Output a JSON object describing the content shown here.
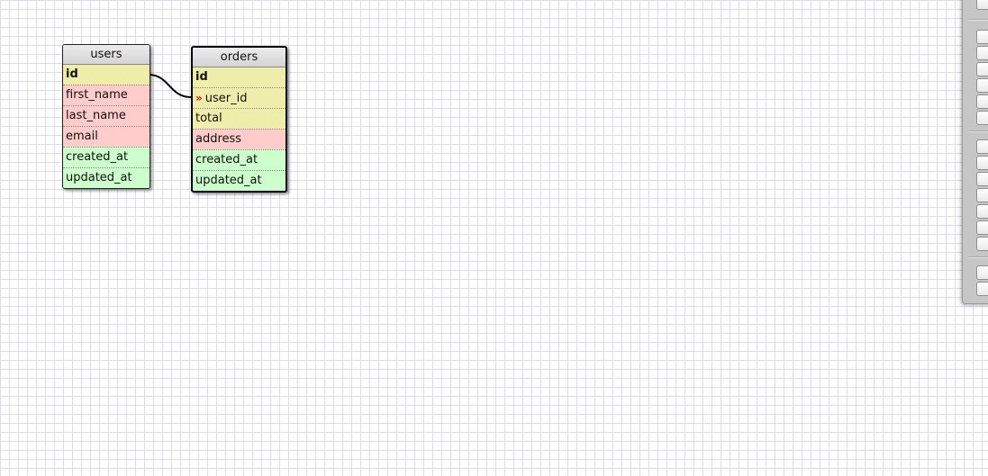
{
  "tables": {
    "users": {
      "title": "users",
      "fields": [
        {
          "name": "id",
          "type": "key"
        },
        {
          "name": "first_name",
          "type": "string"
        },
        {
          "name": "last_name",
          "type": "string"
        },
        {
          "name": "email",
          "type": "string"
        },
        {
          "name": "created_at",
          "type": "datetime"
        },
        {
          "name": "updated_at",
          "type": "datetime"
        }
      ]
    },
    "orders": {
      "title": "orders",
      "fields": [
        {
          "name": "id",
          "type": "key"
        },
        {
          "name": "user_id",
          "type": "key"
        },
        {
          "name": "total",
          "type": "key"
        },
        {
          "name": "address",
          "type": "string"
        },
        {
          "name": "created_at",
          "type": "datetime"
        },
        {
          "name": "updated_at",
          "type": "datetime"
        }
      ]
    }
  },
  "relations": [
    {
      "from": "users.id",
      "to": "orders.user_id"
    }
  ],
  "colors": {
    "key": "#eeeeaa",
    "string": "#ffcccc",
    "datetime": "#ccffcc",
    "foreign_key_marker": "#cc1111",
    "grid": "#dcdcec"
  },
  "icons": {
    "foreign_key": "»"
  }
}
